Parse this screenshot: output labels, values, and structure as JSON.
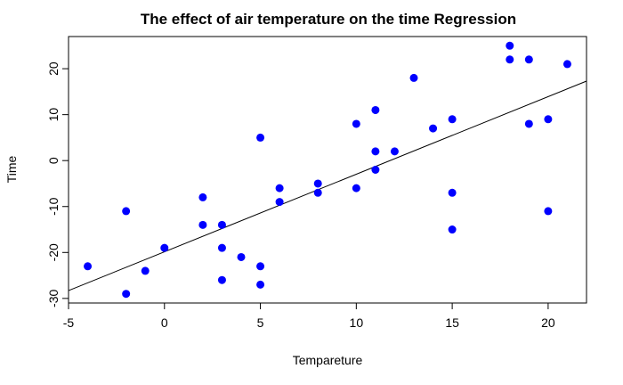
{
  "chart_data": {
    "type": "scatter",
    "title": "The effect of air temperature on the time  Regression",
    "xlabel": "Tempareture",
    "ylabel": "Time",
    "xlim": [
      -5,
      22
    ],
    "ylim": [
      -31,
      27
    ],
    "x_ticks": [
      "-5",
      "0",
      "5",
      "10",
      "15",
      "20"
    ],
    "y_ticks": [
      "-30",
      "-20",
      "-10",
      "0",
      "10",
      "20"
    ],
    "grid": false,
    "legend": "none",
    "point_color": "#0000ff",
    "line_color": "#000000",
    "points": [
      {
        "x": -4,
        "y": -23
      },
      {
        "x": -2,
        "y": -29
      },
      {
        "x": -2,
        "y": -11
      },
      {
        "x": -1,
        "y": -24
      },
      {
        "x": 0,
        "y": -19
      },
      {
        "x": 2,
        "y": -8
      },
      {
        "x": 2,
        "y": -14
      },
      {
        "x": 3,
        "y": -14
      },
      {
        "x": 3,
        "y": -19
      },
      {
        "x": 3,
        "y": -26
      },
      {
        "x": 4,
        "y": -21
      },
      {
        "x": 5,
        "y": 5
      },
      {
        "x": 5,
        "y": -23
      },
      {
        "x": 5,
        "y": -27
      },
      {
        "x": 6,
        "y": -6
      },
      {
        "x": 6,
        "y": -9
      },
      {
        "x": 8,
        "y": -5
      },
      {
        "x": 8,
        "y": -7
      },
      {
        "x": 10,
        "y": 8
      },
      {
        "x": 10,
        "y": -6
      },
      {
        "x": 11,
        "y": 11
      },
      {
        "x": 11,
        "y": 2
      },
      {
        "x": 11,
        "y": -2
      },
      {
        "x": 12,
        "y": 2
      },
      {
        "x": 13,
        "y": 18
      },
      {
        "x": 14,
        "y": 7
      },
      {
        "x": 15,
        "y": 9
      },
      {
        "x": 15,
        "y": -7
      },
      {
        "x": 15,
        "y": -15
      },
      {
        "x": 18,
        "y": 25
      },
      {
        "x": 18,
        "y": 22
      },
      {
        "x": 19,
        "y": 22
      },
      {
        "x": 19,
        "y": 8
      },
      {
        "x": 20,
        "y": 9
      },
      {
        "x": 20,
        "y": -11
      },
      {
        "x": 21,
        "y": 21
      }
    ],
    "regression_line": {
      "x": [
        -5,
        22
      ],
      "y": [
        -28.3,
        17.3
      ]
    }
  }
}
